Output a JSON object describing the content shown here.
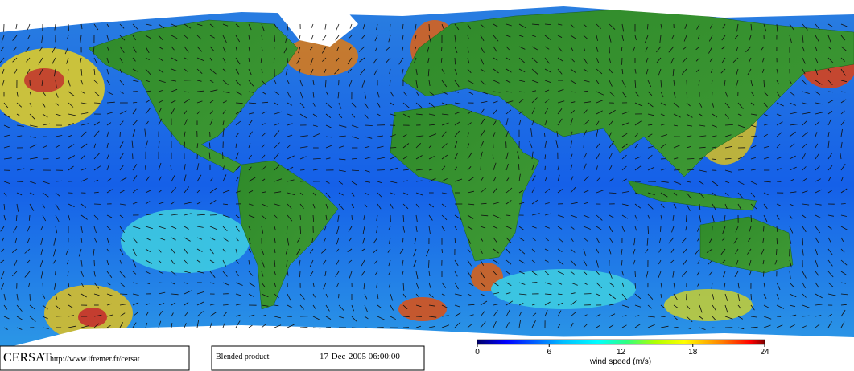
{
  "footer": {
    "logo": "CERSAT",
    "url": "http://www.ifremer.fr/cersat",
    "product": "Blended product",
    "timestamp": "17-Dec-2005 06:00:00"
  },
  "colorbar": {
    "label": "wind speed (m/s)",
    "lim": [
      0,
      24
    ],
    "ticks": [
      0,
      6,
      12,
      18,
      24
    ]
  }
}
